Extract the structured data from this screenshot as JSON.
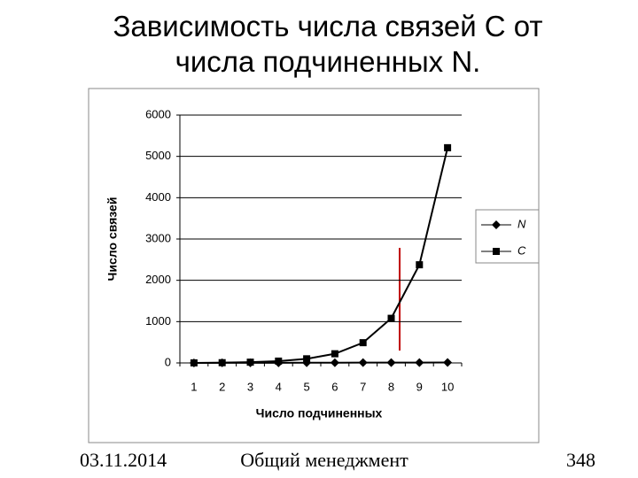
{
  "chart_data": {
    "type": "line",
    "title": "Зависимость числа связей C от числа подчиненных N.",
    "x_label": "Число подчиненных",
    "y_label": "Число связей",
    "categories": [
      "1",
      "2",
      "3",
      "4",
      "5",
      "6",
      "7",
      "8",
      "9",
      "10"
    ],
    "series": [
      {
        "name": "N",
        "color": "#000000",
        "marker": "diamond",
        "values": [
          1,
          2,
          3,
          4,
          5,
          6,
          7,
          8,
          9,
          10
        ]
      },
      {
        "name": "C",
        "color": "#000000",
        "marker": "square",
        "values": [
          1,
          6,
          18,
          44,
          100,
          222,
          490,
          1080,
          2376,
          5210
        ]
      }
    ],
    "ylim": [
      0,
      6000
    ],
    "yticks": [
      0,
      1000,
      2000,
      3000,
      4000,
      5000,
      6000
    ],
    "grid": true,
    "legend": "right"
  },
  "footer": {
    "date": "03.11.2014",
    "course": "Общий менеджмент",
    "page": "348"
  }
}
